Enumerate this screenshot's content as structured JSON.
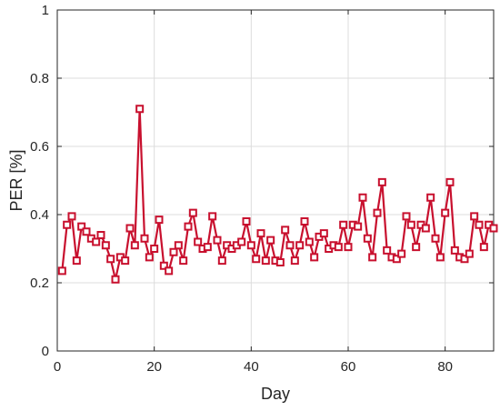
{
  "chart_data": {
    "type": "line",
    "title": "",
    "xlabel": "Day",
    "ylabel": "PER [%]",
    "xlim": [
      0,
      90
    ],
    "ylim": [
      0,
      1
    ],
    "xticks": [
      0,
      20,
      40,
      60,
      80
    ],
    "yticks": [
      0,
      0.2,
      0.4,
      0.6,
      0.8,
      1
    ],
    "xtick_labels": [
      "0",
      "20",
      "40",
      "60",
      "80"
    ],
    "ytick_labels": [
      "0",
      "0.2",
      "0.4",
      "0.6",
      "0.8",
      "1"
    ],
    "grid": true,
    "legend": "none",
    "marker": "square",
    "colors": {
      "series": "#C8102E",
      "grid": "#DCDCDC",
      "axis": "#262626"
    },
    "series": [
      {
        "x": [
          1,
          2,
          3,
          4,
          5,
          6,
          7,
          8,
          9,
          10,
          11,
          12,
          13,
          14,
          15,
          16,
          17,
          18,
          19,
          20,
          21,
          22,
          23,
          24,
          25,
          26,
          27,
          28,
          29,
          30,
          31,
          32,
          33,
          34,
          35,
          36,
          37,
          38,
          39,
          40,
          41,
          42,
          43,
          44,
          45,
          46,
          47,
          48,
          49,
          50,
          51,
          52,
          53,
          54,
          55,
          56,
          57,
          58,
          59,
          60,
          61,
          62,
          63,
          64,
          65,
          66,
          67,
          68,
          69,
          70,
          71,
          72,
          73,
          74,
          75,
          76,
          77,
          78,
          79,
          80,
          81,
          82,
          83,
          84,
          85,
          86,
          87,
          88,
          89,
          90
        ],
        "values": [
          0.235,
          0.37,
          0.395,
          0.265,
          0.365,
          0.35,
          0.33,
          0.32,
          0.34,
          0.31,
          0.27,
          0.21,
          0.275,
          0.265,
          0.36,
          0.31,
          0.71,
          0.33,
          0.275,
          0.3,
          0.385,
          0.25,
          0.235,
          0.29,
          0.31,
          0.265,
          0.365,
          0.405,
          0.32,
          0.3,
          0.305,
          0.395,
          0.325,
          0.265,
          0.31,
          0.3,
          0.31,
          0.32,
          0.38,
          0.31,
          0.27,
          0.345,
          0.265,
          0.325,
          0.265,
          0.26,
          0.355,
          0.31,
          0.265,
          0.31,
          0.38,
          0.32,
          0.275,
          0.335,
          0.345,
          0.3,
          0.31,
          0.305,
          0.37,
          0.305,
          0.37,
          0.365,
          0.45,
          0.33,
          0.275,
          0.405,
          0.495,
          0.295,
          0.275,
          0.27,
          0.285,
          0.395,
          0.37,
          0.305,
          0.37,
          0.36,
          0.45,
          0.33,
          0.275,
          0.405,
          0.495,
          0.295,
          0.275,
          0.27,
          0.285,
          0.395,
          0.37,
          0.305,
          0.37,
          0.36
        ]
      }
    ]
  }
}
